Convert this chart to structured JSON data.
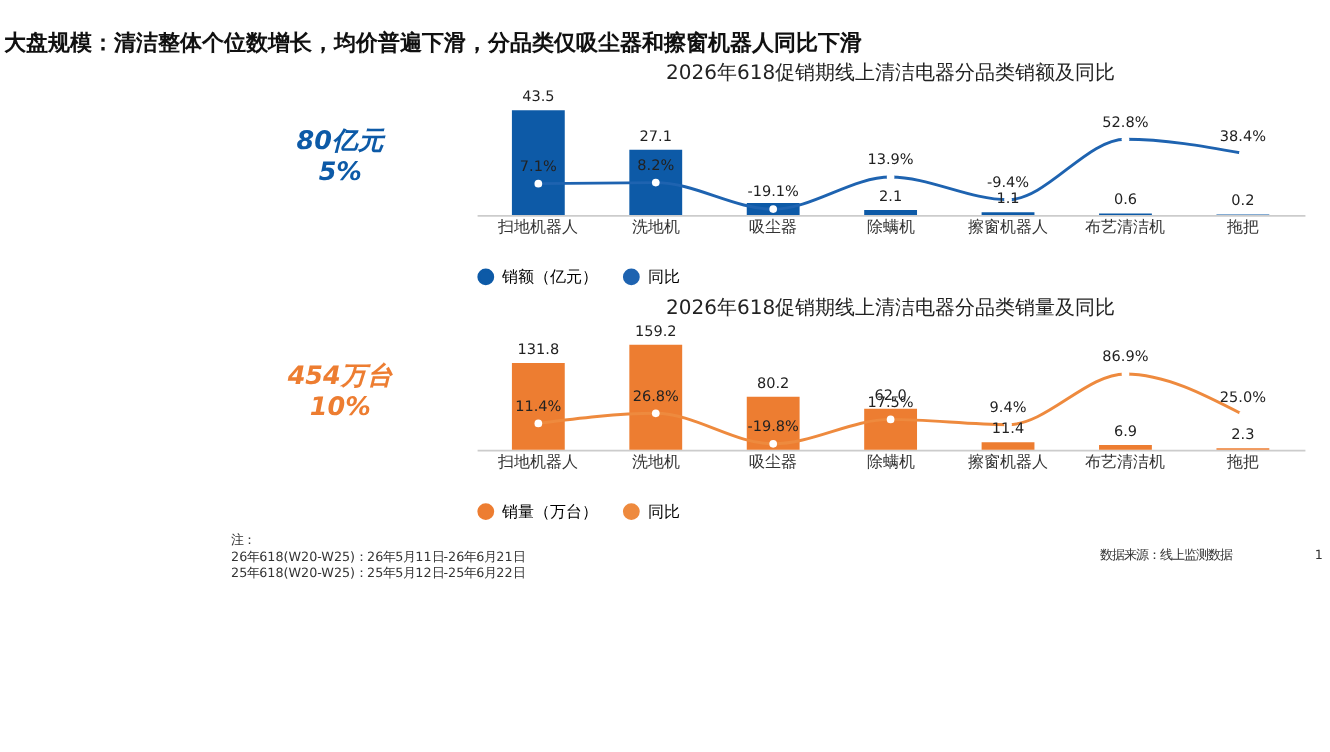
{
  "chart_data": [
    {
      "type": "other",
      "title": "大盘规模：清洁整体个位数增长，均价普遍下滑，分品类仅吸尘器和擦窗机器人同比下滑"
    },
    {
      "type": "bar",
      "title": "2026年618促销期线上清洁电器分品类销额及同比",
      "categories": [
        "扫地机器人",
        "洗地机",
        "吸尘器",
        "除螨机",
        "擦窗机器人",
        "布艺清洁机",
        "拖把"
      ],
      "series": [
        {
          "name": "销额（亿元）",
          "color": "#0d5aa7",
          "values": [
            43.5,
            27.1,
            5,
            2.1,
            1.1,
            0.6,
            0.2
          ],
          "value_labels": [
            "43.5",
            "27.1",
            null,
            "2.1",
            "1.1",
            "0.6",
            "0.2"
          ]
        },
        {
          "name": "同比",
          "type": "line",
          "axis": "y2",
          "color": "#1e63b0",
          "values": [
            7.1,
            8.2,
            -19.1,
            13.9,
            -9.4,
            52.8,
            38.4
          ],
          "value_labels": [
            "7.1%",
            "8.2%",
            "-19.1%",
            "13.9%",
            "-9.4%",
            "52.8%",
            "38.4%"
          ]
        }
      ],
      "tick_labels": "x",
      "grid": false,
      "legend": "bottom",
      "marker": "circle",
      "line_style": "solid",
      "annotations": [
        "80亿元",
        "5%"
      ]
    },
    {
      "type": "bar",
      "title": "2026年618促销期线上清洁电器分品类销量及同比",
      "categories": [
        "扫地机器人",
        "洗地机",
        "吸尘器",
        "除螨机",
        "擦窗机器人",
        "布艺清洁机",
        "拖把"
      ],
      "series": [
        {
          "name": "销量（万台）",
          "color": "#ed7d31",
          "values": [
            131.8,
            159.2,
            80.2,
            62.0,
            11.4,
            6.9,
            2.3
          ],
          "value_labels": [
            "131.8",
            "159.2",
            "80.2",
            "62.0",
            "11.4",
            "6.9",
            "2.3"
          ]
        },
        {
          "name": "同比",
          "type": "line",
          "axis": "y2",
          "color": "#ee8a3e",
          "values": [
            11.4,
            26.8,
            -19.8,
            17.5,
            9.4,
            86.9,
            25.0
          ],
          "value_labels": [
            "11.4%",
            "26.8%",
            "-19.8%",
            "17.5%",
            "9.4%",
            "86.9%",
            "25.0%"
          ]
        }
      ],
      "tick_labels": "x",
      "grid": false,
      "legend": "bottom",
      "marker": "circle",
      "line_style": "solid",
      "annotations": [
        "454万台",
        "10%",
        "注：",
        "26年618(W20-W25)：26年5月11日-26年6月21日",
        "25年618(W20-W25)：25年5月12日-25年6月22日",
        "数据来源：线上监测数据",
        "1"
      ]
    }
  ]
}
